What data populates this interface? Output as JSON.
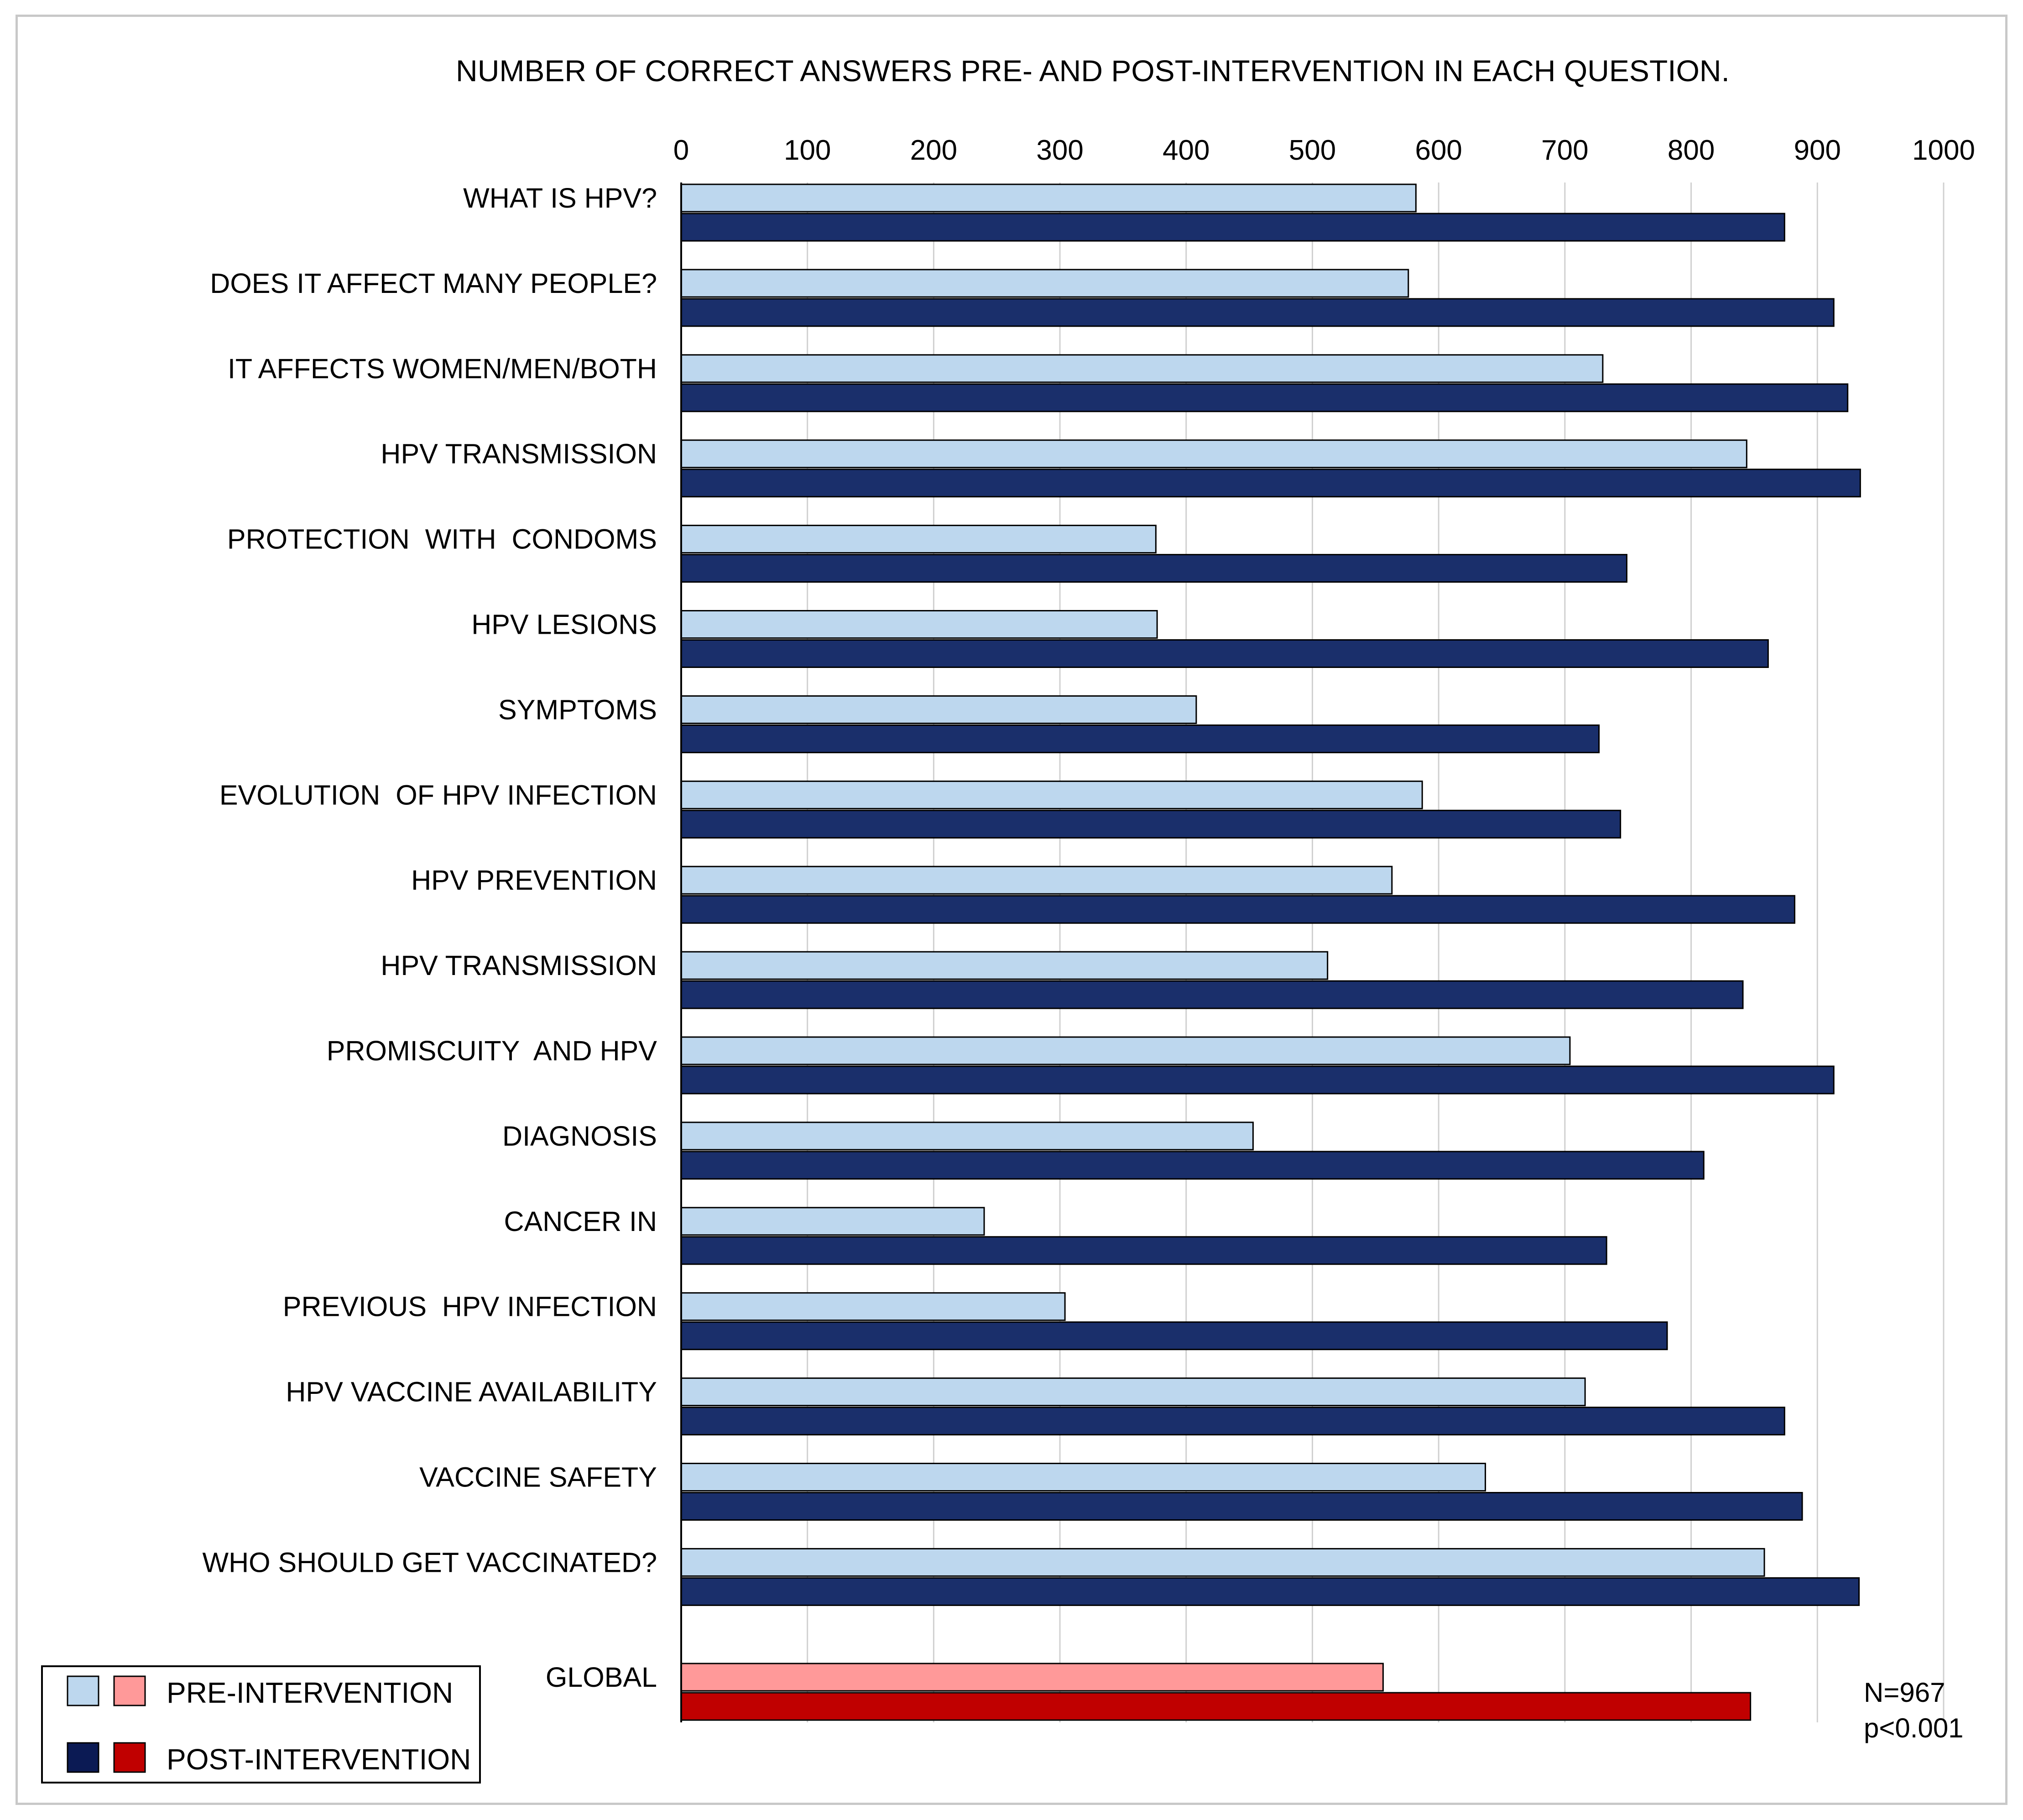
{
  "chart_data": {
    "type": "bar",
    "orientation": "horizontal",
    "title": "NUMBER OF CORRECT ANSWERS PRE- AND POST-INTERVENTION IN EACH QUESTION.",
    "xlim": [
      0,
      1000
    ],
    "xticks": [
      0,
      100,
      200,
      300,
      400,
      500,
      600,
      700,
      800,
      900,
      1000
    ],
    "grid": "vertical",
    "categories": [
      "WHAT IS HPV?",
      "DOES IT AFFECT MANY PEOPLE?",
      "IT AFFECTS WOMEN/MEN/BOTH",
      "HPV TRANSMISSION",
      "PROTECTION  WITH  CONDOMS",
      "HPV LESIONS",
      "SYMPTOMS",
      "EVOLUTION  OF HPV INFECTION",
      "HPV PREVENTION",
      "HPV TRANSMISSION",
      "PROMISCUITY  AND HPV",
      "DIAGNOSIS",
      "CANCER IN",
      "PREVIOUS  HPV INFECTION",
      "HPV VACCINE AVAILABILITY",
      "VACCINE SAFETY",
      "WHO SHOULD GET VACCINATED?",
      "GLOBAL"
    ],
    "series": [
      {
        "name": "PRE-INTERVENTION",
        "values": [
          582,
          576,
          730,
          844,
          376,
          377,
          408,
          587,
          563,
          512,
          704,
          453,
          240,
          304,
          716,
          637,
          858,
          556
        ],
        "colors": [
          "#bdd7ee",
          "#ff9999"
        ]
      },
      {
        "name": "POST-INTERVENTION",
        "values": [
          874,
          913,
          924,
          934,
          749,
          861,
          727,
          744,
          882,
          841,
          913,
          810,
          733,
          781,
          874,
          888,
          933,
          847
        ],
        "colors": [
          "#1a2f6b",
          "#c00000"
        ]
      }
    ],
    "legend": {
      "position": "bottom-left",
      "entries": [
        "PRE-INTERVENTION",
        "POST-INTERVENTION"
      ],
      "swatches": [
        [
          "#bdd7ee",
          "#ff9999"
        ],
        [
          "#0b1a54",
          "#c00000"
        ]
      ]
    },
    "annotations": [
      "N=967",
      "p<0.001"
    ]
  }
}
